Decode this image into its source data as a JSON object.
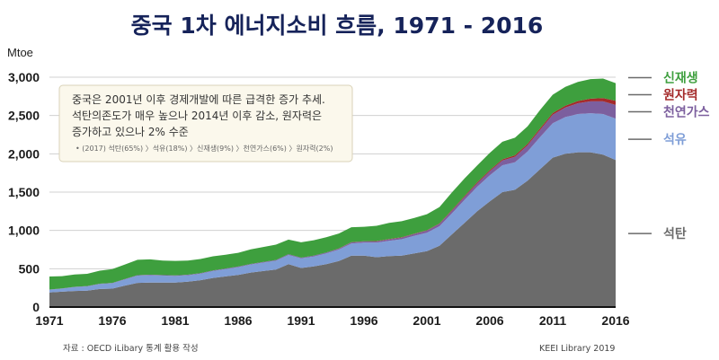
{
  "header": {
    "title": "중국 1차 에너지소비 흐름, 1971 - 2016",
    "unit": "Mtoe"
  },
  "note": {
    "line1": "중국은 2001년 이후 경제개발에 따른 급격한 증가 추세.",
    "line2": "석탄의존도가 매우 높으나 2014년 이후 감소, 원자력은",
    "line3": "증가하고 있으나 2% 수준",
    "shares": "• (2017) 석탄(65%) 〉석유(18%) 〉신재생(9%) 〉천연가스(6%) 〉원자력(2%)"
  },
  "footer": {
    "source": "자료 : OECD iLibary  통계 활용 작성",
    "credit": "KEEI Library 2019"
  },
  "chart_data": {
    "type": "area",
    "stacked": true,
    "title": "중국 1차 에너지소비 흐름, 1971 - 2016",
    "ylabel": "Mtoe",
    "xlim": [
      1971,
      2016
    ],
    "ylim": [
      0,
      3000
    ],
    "yticks": [
      0,
      500,
      1000,
      1500,
      2000,
      2500,
      3000
    ],
    "yticklabels": [
      "0",
      "500",
      "1,000",
      "1,500",
      "2,000",
      "2,500",
      "3,000"
    ],
    "xticks": [
      1971,
      1976,
      1981,
      1986,
      1991,
      1996,
      2001,
      2006,
      2011,
      2016
    ],
    "grid": true,
    "legend": "right",
    "x": [
      1971,
      1972,
      1973,
      1974,
      1975,
      1976,
      1977,
      1978,
      1979,
      1980,
      1981,
      1982,
      1983,
      1984,
      1985,
      1986,
      1987,
      1988,
      1989,
      1990,
      1991,
      1992,
      1993,
      1994,
      1995,
      1996,
      1997,
      1998,
      1999,
      2000,
      2001,
      2002,
      2003,
      2004,
      2005,
      2006,
      2007,
      2008,
      2009,
      2010,
      2011,
      2012,
      2013,
      2014,
      2015,
      2016
    ],
    "series": [
      {
        "name": "석탄",
        "color": "#6b6b6b",
        "values": [
          190,
          200,
          210,
          215,
          235,
          240,
          280,
          315,
          320,
          320,
          320,
          330,
          350,
          380,
          400,
          420,
          450,
          470,
          490,
          560,
          510,
          530,
          560,
          600,
          670,
          670,
          650,
          665,
          670,
          700,
          730,
          800,
          950,
          1100,
          1250,
          1380,
          1500,
          1530,
          1650,
          1800,
          1950,
          2000,
          2020,
          2020,
          1990,
          1920
        ]
      },
      {
        "name": "석유",
        "color": "#7f9ed7",
        "values": [
          35,
          40,
          50,
          55,
          65,
          70,
          80,
          95,
          95,
          90,
          85,
          85,
          85,
          90,
          95,
          100,
          105,
          110,
          115,
          120,
          125,
          130,
          140,
          150,
          160,
          170,
          190,
          200,
          215,
          230,
          240,
          255,
          275,
          300,
          320,
          340,
          350,
          360,
          380,
          420,
          450,
          480,
          500,
          510,
          530,
          540
        ]
      },
      {
        "name": "천연가스",
        "color": "#7c5f9e",
        "values": [
          3,
          3,
          4,
          4,
          5,
          5,
          6,
          6,
          7,
          7,
          7,
          7,
          7,
          7,
          8,
          8,
          8,
          9,
          9,
          10,
          10,
          11,
          11,
          12,
          14,
          15,
          17,
          19,
          21,
          24,
          27,
          30,
          34,
          38,
          45,
          52,
          62,
          72,
          80,
          93,
          110,
          124,
          140,
          155,
          165,
          178
        ]
      },
      {
        "name": "원자력",
        "color": "#a42a2a",
        "values": [
          0,
          0,
          0,
          0,
          0,
          0,
          0,
          0,
          0,
          0,
          0,
          0,
          0,
          0,
          0,
          0,
          0,
          0,
          0,
          0,
          0,
          1,
          1,
          3,
          3,
          3,
          4,
          4,
          4,
          4,
          5,
          6,
          10,
          12,
          14,
          15,
          16,
          18,
          19,
          20,
          22,
          25,
          29,
          35,
          42,
          55
        ]
      },
      {
        "name": "신재생",
        "color": "#3e9f3e",
        "values": [
          170,
          160,
          160,
          160,
          170,
          180,
          190,
          200,
          200,
          190,
          190,
          185,
          185,
          185,
          180,
          180,
          190,
          195,
          200,
          190,
          200,
          200,
          200,
          195,
          195,
          190,
          200,
          210,
          210,
          205,
          210,
          215,
          230,
          230,
          220,
          225,
          230,
          230,
          230,
          240,
          240,
          245,
          250,
          255,
          255,
          230
        ]
      }
    ]
  }
}
